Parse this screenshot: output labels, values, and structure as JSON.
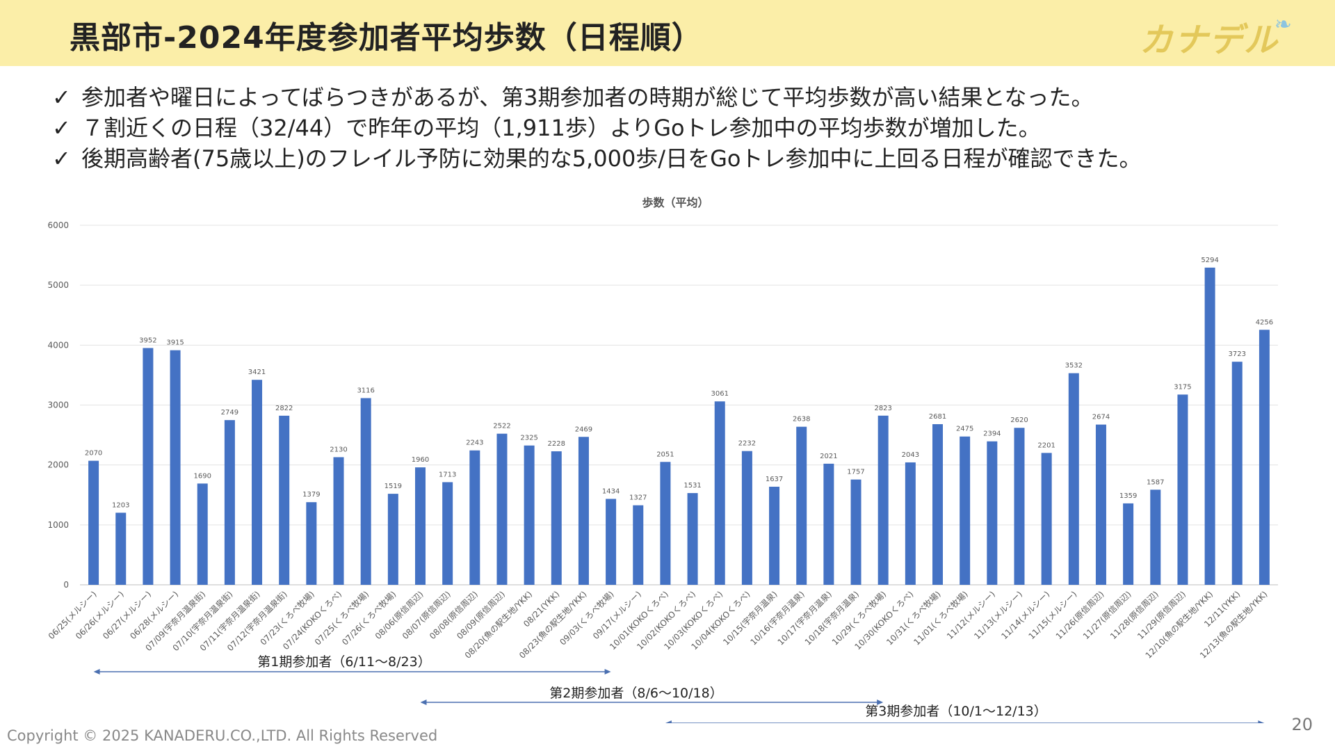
{
  "header": {
    "title": "黒部市-2024年度参加者平均歩数（日程順）",
    "logo": "カナデル",
    "logo_mark": "leaf-icon"
  },
  "bullets": [
    {
      "check": "✓",
      "text": "参加者や曜日によってばらつきがあるが、第3期参加者の時期が総じて平均歩数が高い結果となった。"
    },
    {
      "check": "✓",
      "text": "７割近くの日程（32/44）で昨年の平均（1,911歩）よりGoトレ参加中の平均歩数が増加した。"
    },
    {
      "check": "✓",
      "text": "後期高齢者(75歳以上)のフレイル予防に効果的な5,000歩/日をGoトレ参加中に上回る日程が確認できた。"
    }
  ],
  "chart_data": {
    "type": "bar",
    "title": "歩数（平均）",
    "ylim": [
      0,
      6000
    ],
    "yticks": [
      0,
      1000,
      2000,
      3000,
      4000,
      5000,
      6000
    ],
    "grid": true,
    "bar_color": "#4472c4",
    "categories": [
      "06/25(メルシー)",
      "06/26(メルシー)",
      "06/27(メルシー)",
      "06/28(メルシー)",
      "07/09(宇奈月温泉街)",
      "07/10(宇奈月温泉街)",
      "07/11(宇奈月温泉街)",
      "07/12(宇奈月温泉街)",
      "07/23(くろべ牧場)",
      "07/24(KOKOくろべ)",
      "07/25(くろべ牧場)",
      "07/26(くろべ牧場)",
      "08/06(原信周辺)",
      "08/07(原信周辺)",
      "08/08(原信周辺)",
      "08/09(原信周辺)",
      "08/20(魚の駅生地/YKK)",
      "08/21(YKK)",
      "08/23(魚の駅生地/YKK)",
      "09/03(くろべ牧場)",
      "09/17(メルシー)",
      "10/01(KOKOくろべ)",
      "10/02(KOKOくろべ)",
      "10/03(KOKOくろべ)",
      "10/04(KOKOくろべ)",
      "10/15(宇奈月温泉)",
      "10/16(宇奈月温泉)",
      "10/17(宇奈月温泉)",
      "10/18(宇奈月温泉)",
      "10/29(くろべ牧場)",
      "10/30(KOKOくろべ)",
      "10/31(くろべ牧場)",
      "11/01(くろべ牧場)",
      "11/12(メルシー)",
      "11/13(メルシー)",
      "11/14(メルシー)",
      "11/15(メルシー)",
      "11/26(原信周辺)",
      "11/27(原信周辺)",
      "11/28(原信周辺)",
      "11/29(原信周辺)",
      "12/10(魚の駅生地/YKK)",
      "12/11(YKK)",
      "12/13(魚の駅生地/YKK)"
    ],
    "values": [
      2070,
      1203,
      3952,
      3915,
      1690,
      2749,
      3421,
      2822,
      1379,
      2130,
      3116,
      1519,
      1960,
      1713,
      2243,
      2522,
      2325,
      2228,
      2469,
      1434,
      1327,
      2051,
      1531,
      3061,
      2232,
      1637,
      2638,
      2021,
      1757,
      2823,
      2043,
      2681,
      2475,
      2394,
      2620,
      2201,
      3532,
      2674,
      1359,
      1587,
      3175,
      5294,
      3723,
      4256
    ],
    "periods": [
      {
        "label": "第1期参加者（6/11～8/23）",
        "from": "06/25(メルシー)",
        "to": "09/03(くろべ牧場)"
      },
      {
        "label": "第2期参加者（8/6～10/18）",
        "from": "08/06(原信周辺)",
        "to": "10/29(くろべ牧場)"
      },
      {
        "label": "第3期参加者（10/1～12/13）",
        "from": "10/01(KOKOくろべ)",
        "to": "12/13(魚の駅生地/YKK)"
      }
    ]
  },
  "footer": {
    "copyright": "Copyright © 2025 KANADERU.CO.,LTD.  All Rights Reserved",
    "page": "20"
  }
}
